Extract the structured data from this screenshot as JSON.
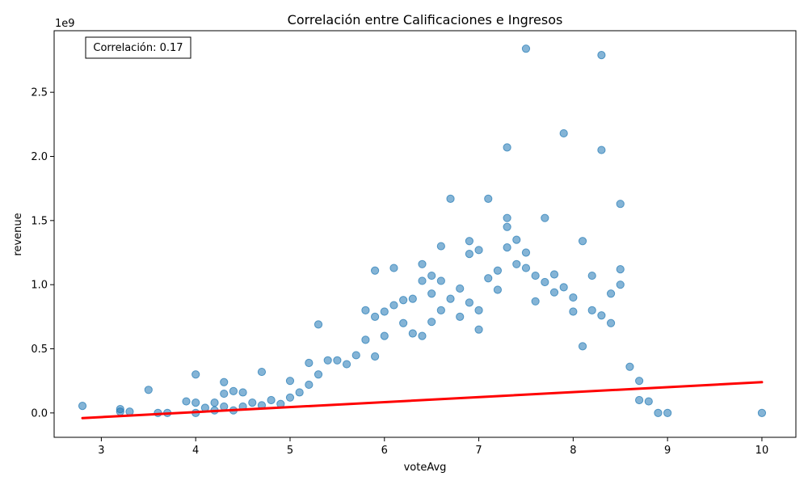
{
  "chart_data": {
    "type": "scatter",
    "title": "Correlación entre Calificaciones e Ingresos",
    "xlabel": "voteAvg",
    "ylabel": "revenue",
    "y_offset_label": "1e9",
    "annotation": "Correlación: 0.17",
    "xlim": [
      2.5,
      10.36
    ],
    "ylim": [
      -0.19,
      2.98
    ],
    "x_ticks": [
      3,
      4,
      5,
      6,
      7,
      8,
      9,
      10
    ],
    "x_tick_labels": [
      "3",
      "4",
      "5",
      "6",
      "7",
      "8",
      "9",
      "10"
    ],
    "y_ticks": [
      0.0,
      0.5,
      1.0,
      1.5,
      2.0,
      2.5
    ],
    "y_tick_labels": [
      "0.0",
      "0.5",
      "1.0",
      "1.5",
      "2.0",
      "2.5"
    ],
    "grid": false,
    "point_color": "#1f77b4",
    "point_alpha": 0.55,
    "trend_line": {
      "color": "#ff0000",
      "x": [
        2.8,
        10.0
      ],
      "y": [
        -0.04,
        0.24
      ]
    },
    "series": [
      {
        "x": [
          2.8,
          3.2,
          3.2,
          3.3,
          3.5,
          3.6,
          3.7,
          3.9,
          4.0,
          4.0,
          4.0,
          4.1,
          4.2,
          4.2,
          4.3,
          4.3,
          4.3,
          4.4,
          4.4,
          4.5,
          4.5,
          4.6,
          4.7,
          4.7,
          4.8,
          4.9,
          5.0,
          5.0,
          5.1,
          5.2,
          5.2,
          5.3,
          5.3,
          5.4,
          5.5,
          5.6,
          5.7,
          5.8,
          5.8,
          5.9,
          5.9,
          5.9,
          6.0,
          6.0,
          6.1,
          6.1,
          6.2,
          6.2,
          6.3,
          6.3,
          6.4,
          6.4,
          6.4,
          6.5,
          6.5,
          6.5,
          6.6,
          6.6,
          6.6,
          6.7,
          6.7,
          6.8,
          6.8,
          6.9,
          6.9,
          6.9,
          7.0,
          7.0,
          7.0,
          7.1,
          7.1,
          7.2,
          7.2,
          7.3,
          7.3,
          7.3,
          7.3,
          7.4,
          7.4,
          7.5,
          7.5,
          7.5,
          7.6,
          7.6,
          7.7,
          7.7,
          7.8,
          7.8,
          7.9,
          7.9,
          8.0,
          8.0,
          8.1,
          8.1,
          8.2,
          8.2,
          8.3,
          8.3,
          8.3,
          8.4,
          8.4,
          8.5,
          8.5,
          8.5,
          8.6,
          8.7,
          8.7,
          8.8,
          8.9,
          9.0,
          10.0
        ],
        "y": [
          0.055,
          0.03,
          0.01,
          0.01,
          0.18,
          0.0,
          0.0,
          0.09,
          0.3,
          0.08,
          0.0,
          0.04,
          0.08,
          0.02,
          0.24,
          0.15,
          0.05,
          0.17,
          0.02,
          0.16,
          0.05,
          0.08,
          0.32,
          0.06,
          0.1,
          0.07,
          0.25,
          0.12,
          0.16,
          0.39,
          0.22,
          0.69,
          0.3,
          0.41,
          0.41,
          0.38,
          0.45,
          0.8,
          0.57,
          1.11,
          0.75,
          0.44,
          0.79,
          0.6,
          1.13,
          0.84,
          0.88,
          0.7,
          0.89,
          0.62,
          1.16,
          1.03,
          0.6,
          1.07,
          0.93,
          0.71,
          1.3,
          1.03,
          0.8,
          1.67,
          0.89,
          0.97,
          0.75,
          1.34,
          1.24,
          0.86,
          1.27,
          0.8,
          0.65,
          1.67,
          1.05,
          1.11,
          0.96,
          2.07,
          1.52,
          1.45,
          1.29,
          1.35,
          1.16,
          2.84,
          1.25,
          1.13,
          1.07,
          0.87,
          1.52,
          1.02,
          1.08,
          0.94,
          2.18,
          0.98,
          0.9,
          0.79,
          1.34,
          0.52,
          1.07,
          0.8,
          2.79,
          2.05,
          0.76,
          0.93,
          0.7,
          1.63,
          1.12,
          1.0,
          0.36,
          0.25,
          0.1,
          0.09,
          0.0,
          0.0,
          0.0
        ]
      }
    ]
  }
}
